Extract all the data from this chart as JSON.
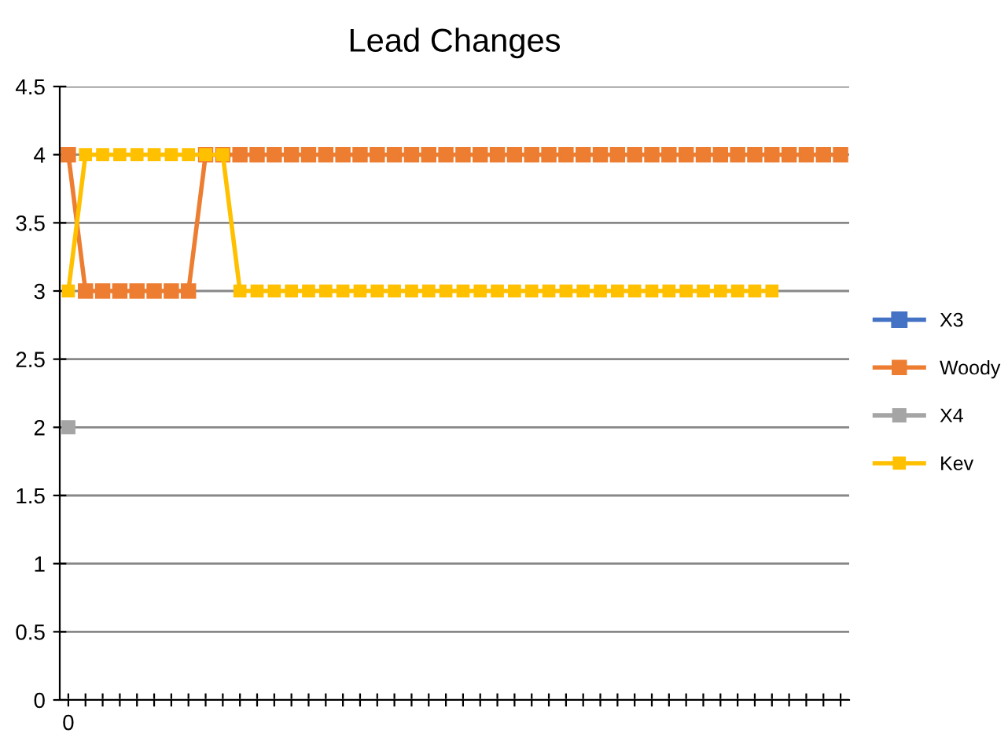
{
  "chart_data": {
    "type": "line",
    "title": "Lead Changes",
    "categories": [
      "0",
      null,
      null,
      null,
      null,
      null,
      null,
      null,
      null,
      null,
      null,
      null,
      null,
      null,
      null,
      null,
      null,
      null,
      null,
      null,
      null,
      null,
      null,
      null,
      null,
      null,
      null,
      null,
      null,
      null,
      null,
      null,
      null,
      null,
      null,
      null,
      null,
      null,
      null,
      null,
      null,
      null,
      null,
      null,
      null,
      null
    ],
    "series": [
      {
        "name": "X3",
        "color": "#4472c4",
        "values": [
          null,
          null,
          null,
          null,
          null,
          null,
          null,
          null,
          null,
          null,
          null,
          null,
          null,
          null,
          null,
          null,
          null,
          null,
          null,
          null,
          null,
          null,
          null,
          null,
          null,
          null,
          null,
          null,
          null,
          null,
          null,
          null,
          null,
          null,
          null,
          null,
          null,
          null,
          null,
          null,
          null,
          null,
          null,
          null,
          null,
          null
        ]
      },
      {
        "name": "Woody",
        "color": "#ed7d31",
        "values": [
          4,
          3,
          3,
          3,
          3,
          3,
          3,
          3,
          4,
          4,
          4,
          4,
          4,
          4,
          4,
          4,
          4,
          4,
          4,
          4,
          4,
          4,
          4,
          4,
          4,
          4,
          4,
          4,
          4,
          4,
          4,
          4,
          4,
          4,
          4,
          4,
          4,
          4,
          4,
          4,
          4,
          4,
          4,
          4,
          4,
          4
        ]
      },
      {
        "name": "X4",
        "color": "#a5a5a5",
        "values": [
          2,
          null,
          null,
          null,
          null,
          null,
          null,
          null,
          null,
          null,
          null,
          null,
          null,
          null,
          null,
          null,
          null,
          null,
          null,
          null,
          null,
          null,
          null,
          null,
          null,
          null,
          null,
          null,
          null,
          null,
          null,
          null,
          null,
          null,
          null,
          null,
          null,
          null,
          null,
          null,
          null,
          null,
          null,
          null,
          null,
          null
        ]
      },
      {
        "name": "Kev",
        "color": "#ffc000",
        "values": [
          3,
          4,
          4,
          4,
          4,
          4,
          4,
          4,
          4,
          4,
          3,
          3,
          3,
          3,
          3,
          3,
          3,
          3,
          3,
          3,
          3,
          3,
          3,
          3,
          3,
          3,
          3,
          3,
          3,
          3,
          3,
          3,
          3,
          3,
          3,
          3,
          3,
          3,
          3,
          3,
          3,
          3,
          null,
          null,
          null,
          null
        ]
      }
    ],
    "ylim": [
      0,
      4.5
    ],
    "yticks": [
      0,
      0.5,
      1,
      1.5,
      2,
      2.5,
      3,
      3.5,
      4,
      4.5
    ],
    "grid": "y",
    "legend": "right",
    "marker": "square",
    "line_style": "solid"
  }
}
